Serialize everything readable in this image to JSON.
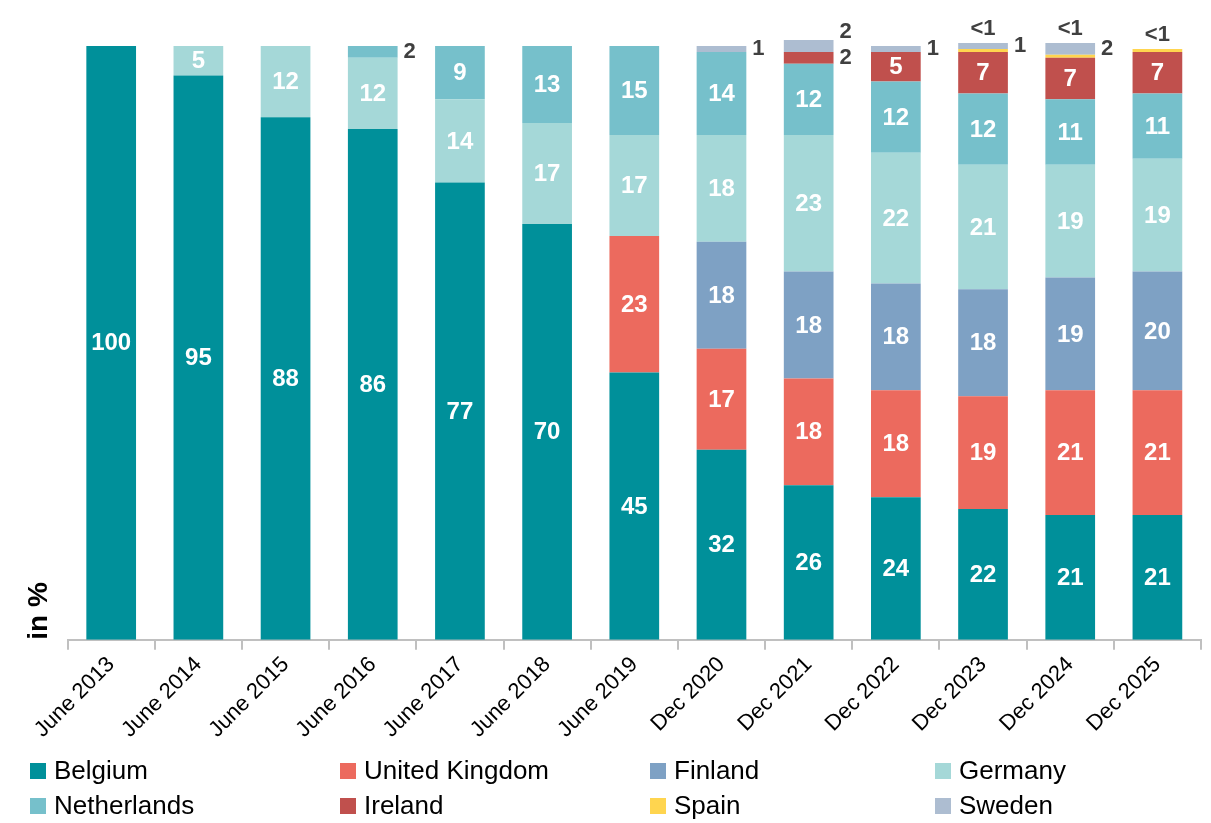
{
  "chart_data": {
    "type": "bar",
    "stacked": true,
    "ylabel": "in %",
    "legend": "bottom",
    "categories": [
      "June 2013",
      "June 2014",
      "June 2015",
      "June 2016",
      "June 2017",
      "June 2018",
      "June 2019",
      "Dec 2020",
      "Dec 2021",
      "Dec 2022",
      "Dec 2023",
      "Dec 2024",
      "Dec 2025"
    ],
    "series": [
      {
        "name": "Belgium",
        "color": "#00909a",
        "values": [
          100,
          95,
          88,
          86,
          77,
          70,
          45,
          32,
          26,
          24,
          22,
          21,
          21
        ],
        "value_labels": [
          "100",
          "95",
          "88",
          "86",
          "77",
          "70",
          "45",
          "32",
          "26",
          "24",
          "22",
          "21",
          "21"
        ]
      },
      {
        "name": "United Kingdom",
        "color": "#ec6a5e",
        "values": [
          null,
          null,
          null,
          null,
          null,
          null,
          23,
          17,
          18,
          18,
          19,
          21,
          21
        ],
        "value_labels": [
          null,
          null,
          null,
          null,
          null,
          null,
          "23",
          "17",
          "18",
          "18",
          "19",
          "21",
          "21"
        ]
      },
      {
        "name": "Finland",
        "color": "#7ea1c4",
        "values": [
          null,
          null,
          null,
          null,
          null,
          null,
          null,
          18,
          18,
          18,
          18,
          19,
          20
        ],
        "value_labels": [
          null,
          null,
          null,
          null,
          null,
          null,
          null,
          "18",
          "18",
          "18",
          "18",
          "19",
          "20"
        ]
      },
      {
        "name": "Germany",
        "color": "#a5d8d8",
        "values": [
          null,
          5,
          12,
          12,
          14,
          17,
          17,
          18,
          23,
          22,
          21,
          19,
          19
        ],
        "value_labels": [
          null,
          "5",
          "12",
          "12",
          "14",
          "17",
          "17",
          "18",
          "23",
          "22",
          "21",
          "19",
          "19"
        ]
      },
      {
        "name": "Netherlands",
        "color": "#76c0cb",
        "values": [
          null,
          null,
          null,
          2,
          9,
          13,
          15,
          14,
          12,
          12,
          12,
          11,
          11
        ],
        "value_labels": [
          null,
          null,
          null,
          "2",
          "9",
          "13",
          "15",
          "14",
          "12",
          "12",
          "12",
          "11",
          "11"
        ]
      },
      {
        "name": "Ireland",
        "color": "#c0504d",
        "values": [
          null,
          null,
          null,
          null,
          null,
          null,
          null,
          null,
          2,
          5,
          7,
          7,
          7
        ],
        "value_labels": [
          null,
          null,
          null,
          null,
          null,
          null,
          null,
          null,
          "2",
          "5",
          "7",
          "7",
          "7"
        ]
      },
      {
        "name": "Spain",
        "color": "#ffd54f",
        "values": [
          null,
          null,
          null,
          null,
          null,
          null,
          null,
          null,
          null,
          null,
          0.5,
          0.5,
          0.5
        ],
        "value_labels": [
          null,
          null,
          null,
          null,
          null,
          null,
          null,
          null,
          null,
          null,
          "<1",
          "<1",
          "<1"
        ]
      },
      {
        "name": "Sweden",
        "color": "#adbdd1",
        "values": [
          null,
          null,
          null,
          null,
          null,
          null,
          null,
          1,
          2,
          1,
          1,
          2,
          null
        ],
        "value_labels": [
          null,
          null,
          null,
          null,
          null,
          null,
          null,
          "1",
          "2",
          "1",
          "1",
          "2",
          null
        ]
      }
    ]
  }
}
